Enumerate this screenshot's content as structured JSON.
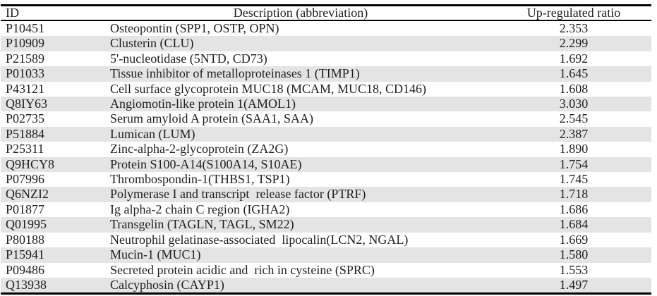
{
  "colors": {
    "stripe": "#e4e4e4",
    "border": "#000000",
    "text": "#1f1f1f",
    "background": "#ffffff"
  },
  "table": {
    "columns": [
      {
        "key": "id",
        "label": "ID"
      },
      {
        "key": "description",
        "label": "Description (abbreviation)"
      },
      {
        "key": "ratio",
        "label": "Up-regulated ratio"
      }
    ],
    "rows": [
      {
        "id": "P10451",
        "description": "Osteopontin (SPP1, OSTP, OPN)",
        "ratio": "2.353"
      },
      {
        "id": "P10909",
        "description": "Clusterin (CLU)",
        "ratio": "2.299"
      },
      {
        "id": "P21589",
        "description": "5'-nucleotidase (5NTD, CD73)",
        "ratio": "1.692"
      },
      {
        "id": "P01033",
        "description": "Tissue inhibitor of metalloproteinases 1 (TIMP1)",
        "ratio": "1.645"
      },
      {
        "id": "P43121",
        "description": "Cell surface glycoprotein MUC18 (MCAM, MUC18, CD146)",
        "ratio": "1.608"
      },
      {
        "id": "Q8IY63",
        "description": "Angiomotin-like protein 1(AMOL1)",
        "ratio": "3.030"
      },
      {
        "id": "P02735",
        "description": "Serum amyloid A protein (SAA1, SAA)",
        "ratio": "2.545"
      },
      {
        "id": "P51884",
        "description": "Lumican (LUM)",
        "ratio": "2.387"
      },
      {
        "id": "P25311",
        "description": "Zinc-alpha-2-glycoprotein (ZA2G)",
        "ratio": "1.890"
      },
      {
        "id": "Q9HCY8",
        "description": "Protein S100-A14(S100A14, S10AE)",
        "ratio": "1.754"
      },
      {
        "id": "P07996",
        "description": "Thrombospondin-1(THBS1, TSP1)",
        "ratio": "1.745"
      },
      {
        "id": "Q6NZI2",
        "description": "Polymerase I and transcript  release factor (PTRF)",
        "ratio": "1.718"
      },
      {
        "id": "P01877",
        "description": "Ig alpha-2 chain C region (IGHA2)",
        "ratio": "1.686"
      },
      {
        "id": "Q01995",
        "description": "Transgelin (TAGLN, TAGL, SM22)",
        "ratio": "1.684"
      },
      {
        "id": "P80188",
        "description": "Neutrophil gelatinase-associated  lipocalin(LCN2, NGAL)",
        "ratio": "1.669"
      },
      {
        "id": "P15941",
        "description": "Mucin-1 (MUC1)",
        "ratio": "1.580"
      },
      {
        "id": "P09486",
        "description": "Secreted protein acidic and  rich in cysteine (SPRC)",
        "ratio": "1.553"
      },
      {
        "id": "Q13938",
        "description": "Calcyphosin (CAYP1)",
        "ratio": "1.497"
      }
    ]
  }
}
